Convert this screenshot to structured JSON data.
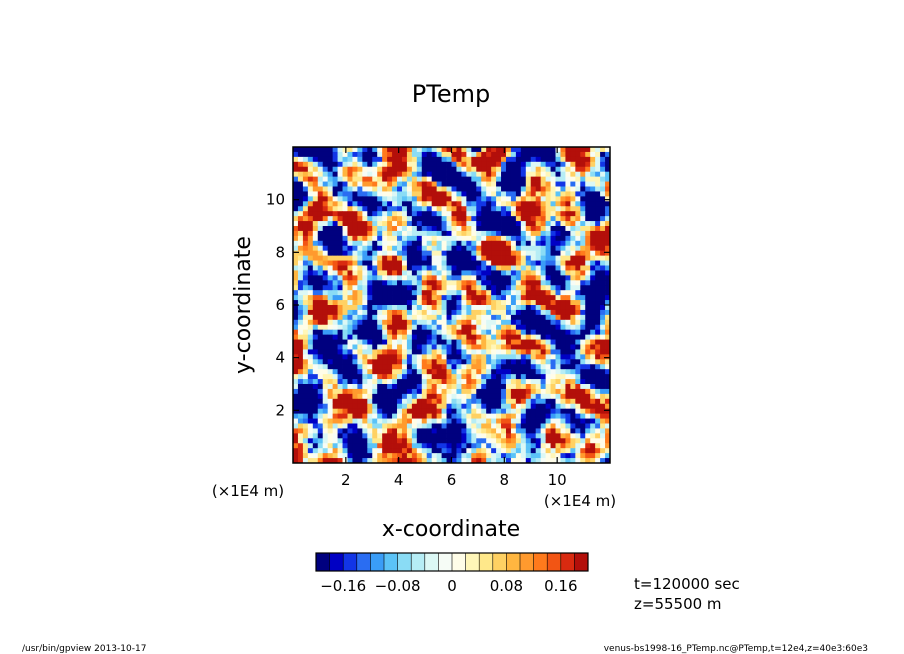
{
  "chart_data": {
    "type": "heatmap",
    "title": "PTemp",
    "xlabel": "x-coordinate",
    "ylabel": "y-coordinate",
    "x_unit": "(×1E4 m)",
    "y_unit": "(×1E4 m)",
    "xlim": [
      0,
      12
    ],
    "ylim": [
      0,
      12
    ],
    "x_ticks": [
      2,
      4,
      6,
      8,
      10
    ],
    "y_ticks": [
      2,
      4,
      6,
      8,
      10
    ],
    "colorbar": {
      "min": -0.2,
      "max": 0.2,
      "tick_values": [
        -0.16,
        -0.08,
        0,
        0.08,
        0.16
      ],
      "tick_labels": [
        "−0.16",
        "−0.08",
        "0",
        "0.08",
        "0.16"
      ],
      "colors": [
        "#00007f",
        "#0000c4",
        "#1235e6",
        "#2a6df2",
        "#3a9df7",
        "#5bc3f7",
        "#8adcf5",
        "#b6edf5",
        "#dcf8f5",
        "#f6fcf6",
        "#fffde8",
        "#fff6b8",
        "#ffe88a",
        "#ffd163",
        "#ffb640",
        "#ff9a2e",
        "#ff7a1c",
        "#f25514",
        "#d92a10",
        "#b30f0a"
      ]
    },
    "grid": false,
    "legend": "colorbar below plot"
  },
  "info": {
    "time": "t=120000 sec",
    "height": "z=55500 m"
  },
  "footer": {
    "left": "/usr/bin/gpview  2013-10-17",
    "right": "venus-bs1998-16_PTemp.nc@PTemp,t=12e4,z=40e3:60e3"
  }
}
